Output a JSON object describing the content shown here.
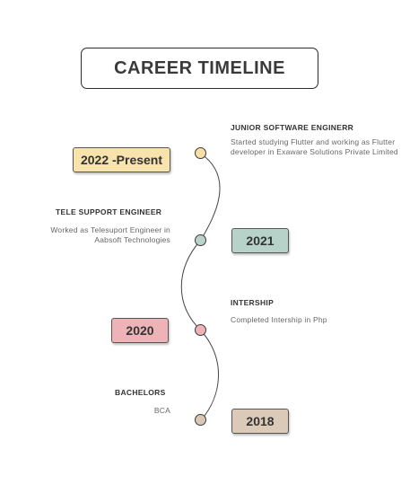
{
  "title": "CAREER TIMELINE",
  "colors": {
    "node_yellow": "#f6e0a6",
    "node_teal": "#b9d3cb",
    "node_pink": "#eeb3b6",
    "node_tan": "#d9c6b4",
    "badge_yellow": "#f9e3ac",
    "badge_teal": "#b7d2c8",
    "badge_pink": "#eeb3b6",
    "badge_tan": "#dccab8"
  },
  "entries": [
    {
      "year": "2022 -Present",
      "heading": "JUNIOR SOFTWARE ENGINERR",
      "description": "Started studying Flutter  and working as Flutter developer in Exaware  Solutions Private Limited"
    },
    {
      "year": "2021",
      "heading": "TELE SUPPORT ENGINEER",
      "description": "Worked as Telesuport Engineer in Aabsoft Technologies"
    },
    {
      "year": "2020",
      "heading": "INTERSHIP",
      "description": "Completed  Intership in Php"
    },
    {
      "year": "2018",
      "heading": "BACHELORS",
      "description": "BCA"
    }
  ]
}
